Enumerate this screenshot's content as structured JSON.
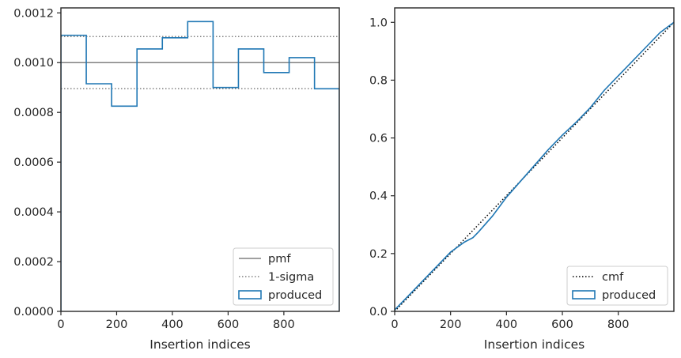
{
  "colors": {
    "produced": "#1f77b4",
    "reference": "#808080",
    "cmf": "#000000",
    "axes": "#262626"
  },
  "chart_data": [
    {
      "type": "histogram-step",
      "xlabel": "Insertion indices",
      "ylabel": "",
      "xlim": [
        0,
        999
      ],
      "ylim": [
        0,
        0.00122
      ],
      "xticks": [
        0,
        200,
        400,
        600,
        800
      ],
      "xtick_labels": [
        "0",
        "200",
        "400",
        "600",
        "800"
      ],
      "yticks": [
        0,
        0.0002,
        0.0004,
        0.0006,
        0.0008,
        0.001,
        0.0012
      ],
      "ytick_labels": [
        "0.0000",
        "0.0002",
        "0.0004",
        "0.0006",
        "0.0008",
        "0.0010",
        "0.0012"
      ],
      "bin_edges": [
        0,
        91,
        182,
        273,
        364,
        455,
        546,
        637,
        728,
        819,
        910,
        999
      ],
      "series": [
        {
          "name": "produced",
          "style": "step",
          "values": [
            0.00111,
            0.000915,
            0.000825,
            0.001055,
            0.0011,
            0.001165,
            0.0009,
            0.001055,
            0.00096,
            0.00102,
            0.000895
          ]
        }
      ],
      "reference_lines": [
        {
          "name": "pmf",
          "style": "solid",
          "y": [
            0.001
          ]
        },
        {
          "name": "1-sigma",
          "style": "dotted",
          "y": [
            0.001105,
            0.000895
          ]
        }
      ],
      "legend": {
        "placement": "lower-right",
        "entries": [
          {
            "label": "pmf",
            "marker": "line-solid"
          },
          {
            "label": "1-sigma",
            "marker": "line-dotted"
          },
          {
            "label": "produced",
            "marker": "box"
          }
        ]
      }
    },
    {
      "type": "line",
      "xlabel": "Insertion indices",
      "ylabel": "",
      "xlim": [
        0,
        999
      ],
      "ylim": [
        0,
        1.05
      ],
      "xticks": [
        0,
        200,
        400,
        600,
        800
      ],
      "xtick_labels": [
        "0",
        "200",
        "400",
        "600",
        "800"
      ],
      "yticks": [
        0,
        0.2,
        0.4,
        0.6,
        0.8,
        1.0
      ],
      "ytick_labels": [
        "0.0",
        "0.2",
        "0.4",
        "0.6",
        "0.8",
        "1.0"
      ],
      "series": [
        {
          "name": "cmf",
          "style": "dotted",
          "x": [
            0,
            999
          ],
          "y": [
            0,
            1.0
          ]
        },
        {
          "name": "produced",
          "style": "solid",
          "x": [
            0,
            50,
            100,
            150,
            200,
            250,
            280,
            300,
            350,
            400,
            450,
            500,
            550,
            600,
            650,
            700,
            750,
            800,
            850,
            900,
            950,
            999
          ],
          "y": [
            0.005,
            0.055,
            0.105,
            0.155,
            0.205,
            0.24,
            0.255,
            0.275,
            0.33,
            0.395,
            0.45,
            0.505,
            0.56,
            0.61,
            0.655,
            0.705,
            0.765,
            0.815,
            0.865,
            0.915,
            0.965,
            1.0
          ]
        }
      ],
      "legend": {
        "placement": "lower-right",
        "entries": [
          {
            "label": "cmf",
            "marker": "line-dotted"
          },
          {
            "label": "produced",
            "marker": "box"
          }
        ]
      }
    }
  ]
}
